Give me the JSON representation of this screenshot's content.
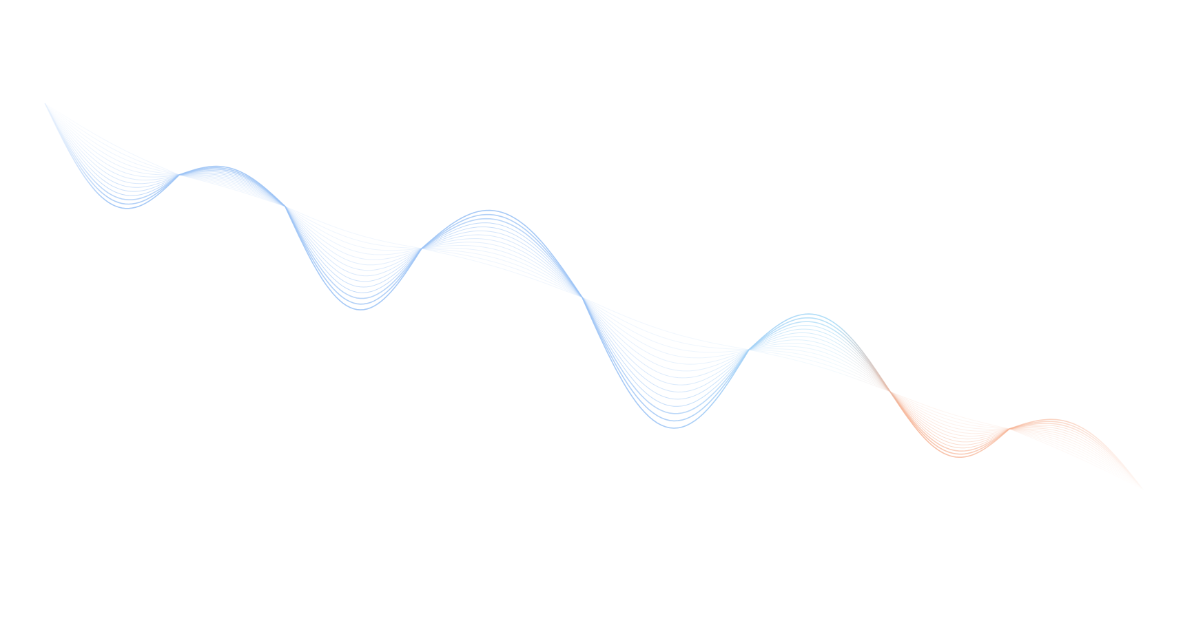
{
  "background_color": "#ffffff",
  "wave": {
    "line_count": 14,
    "colors": {
      "start": "#9cc3f5",
      "middle": "#a9dcf7",
      "end": "#f6b395"
    }
  }
}
